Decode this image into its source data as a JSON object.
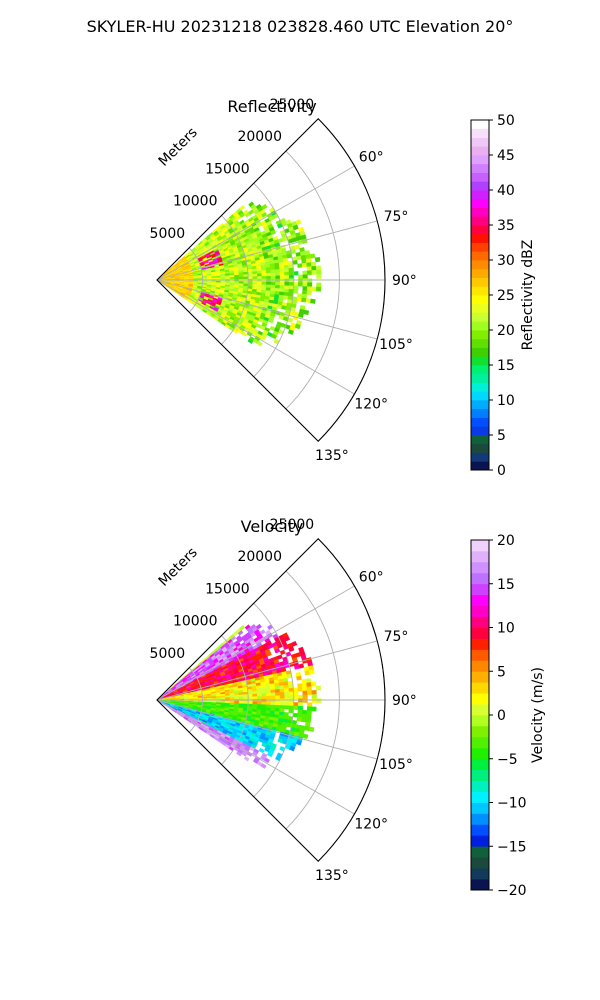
{
  "figure": {
    "suptitle": "SKYLER-HU  20231218  023828.460 UTC Elevation 20°"
  },
  "colors": {
    "grid": "#b0b0b0",
    "frame": "#000000"
  },
  "chart_data": [
    {
      "type": "heatmap",
      "kind": "polar-sector",
      "title": "Reflectivity",
      "radial_axis_label": "Meters",
      "radial_ticks": [
        5000,
        10000,
        15000,
        20000,
        25000
      ],
      "radial_tick_labels": [
        "5000",
        "10000",
        "15000",
        "20000",
        "25000"
      ],
      "rlim": [
        0,
        25000
      ],
      "azimuth_range_deg": [
        45,
        135
      ],
      "azimuth_ticks_deg": [
        60,
        75,
        90,
        105,
        120,
        135
      ],
      "azimuth_tick_labels": [
        "60°",
        "75°",
        "90°",
        "105°",
        "120°",
        "135°"
      ],
      "grid": true,
      "colorbar": {
        "label": "Reflectivity dBZ",
        "range": [
          0,
          50
        ],
        "ticks": [
          0,
          5,
          10,
          15,
          20,
          25,
          30,
          35,
          40,
          45,
          50
        ],
        "tick_labels": [
          "0",
          "5",
          "10",
          "15",
          "20",
          "25",
          "30",
          "35",
          "40",
          "45",
          "50"
        ],
        "colors": [
          "#0a1450",
          "#123a78",
          "#1b4a3c",
          "#10603c",
          "#0a3ae6",
          "#0050ff",
          "#0080ff",
          "#00aaff",
          "#00d8ff",
          "#00f0d8",
          "#00f0a0",
          "#00f070",
          "#10e030",
          "#40d000",
          "#60e000",
          "#80f000",
          "#a0ff20",
          "#c8ff30",
          "#e8ff20",
          "#ffff00",
          "#ffe600",
          "#ffc800",
          "#ffaa00",
          "#ff8c00",
          "#ff6a00",
          "#ff4000",
          "#ff1000",
          "#ff0040",
          "#ff0080",
          "#ff00c0",
          "#ff00ff",
          "#d020ff",
          "#b040ff",
          "#c860ff",
          "#d080ff",
          "#e0a0ff",
          "#e8b0f0",
          "#f0c8f8",
          "#f8e0fc",
          "#ffffff"
        ]
      },
      "echo_region": {
        "azimuth_extent_deg": [
          49,
          124
        ],
        "range_extent_m": [
          0,
          18000
        ],
        "dominant_dbz": [
          18,
          25
        ],
        "near_range_dbz": [
          25,
          28
        ],
        "high_dbz_bands": [
          {
            "azimuth_deg": [
              63,
              77
            ],
            "range_m": [
              5000,
              7500
            ],
            "dbz": [
              32,
              40
            ]
          },
          {
            "azimuth_deg": [
              105,
              118
            ],
            "range_m": [
              5000,
              7500
            ],
            "dbz": [
              32,
              40
            ]
          }
        ]
      }
    },
    {
      "type": "heatmap",
      "kind": "polar-sector",
      "title": "Velocity",
      "radial_axis_label": "Meters",
      "radial_ticks": [
        5000,
        10000,
        15000,
        20000,
        25000
      ],
      "radial_tick_labels": [
        "5000",
        "10000",
        "15000",
        "20000",
        "25000"
      ],
      "rlim": [
        0,
        25000
      ],
      "azimuth_range_deg": [
        45,
        135
      ],
      "azimuth_ticks_deg": [
        60,
        75,
        90,
        105,
        120,
        135
      ],
      "azimuth_tick_labels": [
        "60°",
        "75°",
        "90°",
        "105°",
        "120°",
        "135°"
      ],
      "grid": true,
      "colorbar": {
        "label": "Velocity (m/s)",
        "range": [
          -20,
          20
        ],
        "ticks": [
          -20,
          -15,
          -10,
          -5,
          0,
          5,
          10,
          15,
          20
        ],
        "tick_labels": [
          "−20",
          "−15",
          "−10",
          "−5",
          "0",
          "5",
          "10",
          "15",
          "20"
        ],
        "colors": [
          "#0a1450",
          "#123a5a",
          "#1b4a3c",
          "#10603c",
          "#0020e0",
          "#0050ff",
          "#0090ff",
          "#00c8ff",
          "#00f0ff",
          "#00f0c0",
          "#00f080",
          "#00f040",
          "#20f000",
          "#50f000",
          "#80f000",
          "#b0ff20",
          "#d8ff30",
          "#ffff00",
          "#ffd800",
          "#ffb000",
          "#ff8800",
          "#ff5a00",
          "#ff2000",
          "#ff0040",
          "#ff0080",
          "#ff00c8",
          "#ff00ff",
          "#d040ff",
          "#c070ff",
          "#d090ff",
          "#e0b0f8",
          "#f0d0fc"
        ]
      },
      "echo_region": {
        "azimuth_extent_deg": [
          49,
          124
        ],
        "range_extent_m": [
          0,
          18000
        ],
        "velocity_by_azimuth": [
          {
            "azimuth_deg": [
              50,
              62
            ],
            "velocity_ms": [
              12,
              18
            ]
          },
          {
            "azimuth_deg": [
              62,
              78
            ],
            "velocity_ms": [
              7,
              12
            ]
          },
          {
            "azimuth_deg": [
              78,
              92
            ],
            "velocity_ms": [
              0,
              5
            ]
          },
          {
            "azimuth_deg": [
              92,
              105
            ],
            "velocity_ms": [
              -5,
              -2
            ]
          },
          {
            "azimuth_deg": [
              105,
              116
            ],
            "velocity_ms": [
              -12,
              -8
            ]
          },
          {
            "azimuth_deg": [
              116,
              124
            ],
            "velocity_ms": [
              15,
              18
            ]
          }
        ]
      }
    }
  ]
}
